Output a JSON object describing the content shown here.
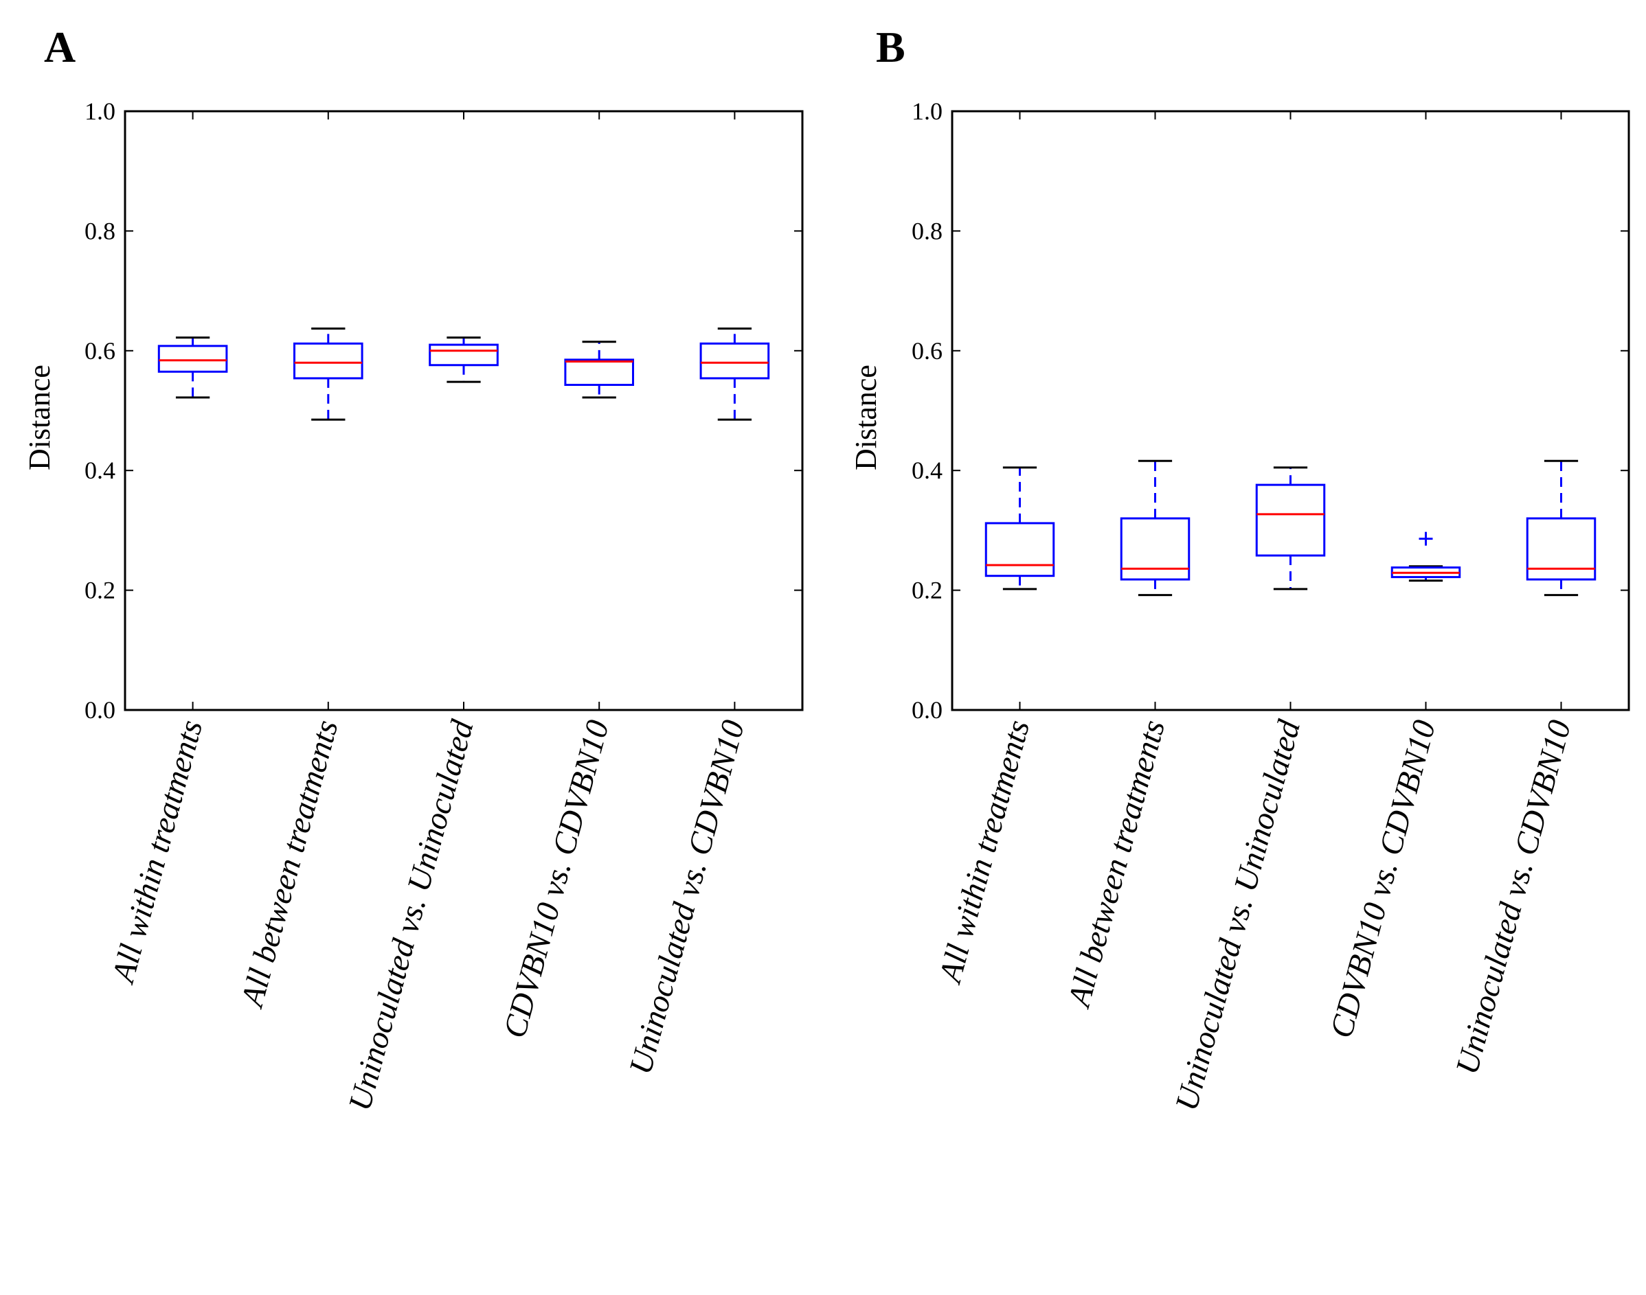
{
  "colors": {
    "box": "#0000ff",
    "median": "#ff0000",
    "cap": "#000000",
    "axes": "#000000",
    "background": "#ffffff"
  },
  "chart_data": [
    {
      "type": "box",
      "panel_label": "A",
      "ylabel": "Distance",
      "ylim": [
        0.0,
        1.0
      ],
      "yticks": [
        "0.0",
        "0.2",
        "0.4",
        "0.6",
        "0.8",
        "1.0"
      ],
      "categories": [
        "All within treatments",
        "All between treatments",
        "Uninoculated vs. Uninoculated",
        "CDVBN10 vs. CDVBN10",
        "Uninoculated vs. CDVBN10"
      ],
      "boxes": [
        {
          "whisker_low": 0.522,
          "q1": 0.565,
          "median": 0.584,
          "q3": 0.608,
          "whisker_high": 0.622,
          "outliers": []
        },
        {
          "whisker_low": 0.485,
          "q1": 0.554,
          "median": 0.58,
          "q3": 0.612,
          "whisker_high": 0.637,
          "outliers": []
        },
        {
          "whisker_low": 0.548,
          "q1": 0.576,
          "median": 0.6,
          "q3": 0.61,
          "whisker_high": 0.622,
          "outliers": []
        },
        {
          "whisker_low": 0.522,
          "q1": 0.543,
          "median": 0.582,
          "q3": 0.585,
          "whisker_high": 0.615,
          "outliers": []
        },
        {
          "whisker_low": 0.485,
          "q1": 0.554,
          "median": 0.58,
          "q3": 0.612,
          "whisker_high": 0.637,
          "outliers": []
        }
      ]
    },
    {
      "type": "box",
      "panel_label": "B",
      "ylabel": "Distance",
      "ylim": [
        0.0,
        1.0
      ],
      "yticks": [
        "0.0",
        "0.2",
        "0.4",
        "0.6",
        "0.8",
        "1.0"
      ],
      "categories": [
        "All within treatments",
        "All between treatments",
        "Uninoculated vs. Uninoculated",
        "CDVBN10 vs. CDVBN10",
        "Uninoculated vs. CDVBN10"
      ],
      "boxes": [
        {
          "whisker_low": 0.202,
          "q1": 0.224,
          "median": 0.242,
          "q3": 0.312,
          "whisker_high": 0.405,
          "outliers": []
        },
        {
          "whisker_low": 0.192,
          "q1": 0.218,
          "median": 0.236,
          "q3": 0.32,
          "whisker_high": 0.416,
          "outliers": []
        },
        {
          "whisker_low": 0.202,
          "q1": 0.258,
          "median": 0.327,
          "q3": 0.376,
          "whisker_high": 0.405,
          "outliers": []
        },
        {
          "whisker_low": 0.216,
          "q1": 0.222,
          "median": 0.229,
          "q3": 0.238,
          "whisker_high": 0.24,
          "outliers": [
            0.286
          ]
        },
        {
          "whisker_low": 0.192,
          "q1": 0.218,
          "median": 0.236,
          "q3": 0.32,
          "whisker_high": 0.416,
          "outliers": []
        }
      ]
    }
  ]
}
